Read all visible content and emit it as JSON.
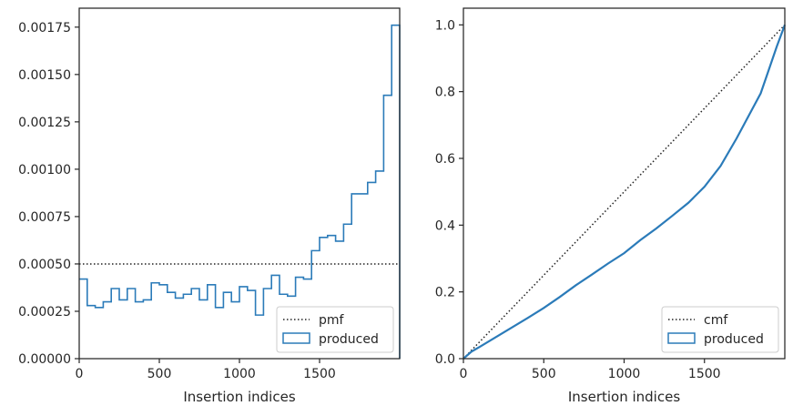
{
  "chart_data": [
    {
      "type": "step",
      "xlabel": "Insertion indices",
      "ylabel": "",
      "xlim": [
        0,
        2000
      ],
      "ylim": [
        0,
        0.00185
      ],
      "xticks": [
        0,
        500,
        1000,
        1500
      ],
      "yticks": [
        0.0,
        0.00025,
        0.0005,
        0.00075,
        0.001,
        0.00125,
        0.0015,
        0.00175
      ],
      "ytick_labels": [
        "0.00000",
        "0.00025",
        "0.00050",
        "0.00075",
        "0.00100",
        "0.00125",
        "0.00150",
        "0.00175"
      ],
      "legend_position": "lower right",
      "series": [
        {
          "name": "pmf",
          "style": "dotted",
          "color": "#000000",
          "x": [
            0,
            2000
          ],
          "y": [
            0.0005,
            0.0005
          ]
        },
        {
          "name": "produced",
          "style": "step-histogram",
          "color": "#2b7bb9",
          "bin_edges": [
            0,
            50,
            100,
            150,
            200,
            250,
            300,
            350,
            400,
            450,
            500,
            550,
            600,
            650,
            700,
            750,
            800,
            850,
            900,
            950,
            1000,
            1050,
            1100,
            1150,
            1200,
            1250,
            1300,
            1350,
            1400,
            1450,
            1500,
            1550,
            1600,
            1650,
            1700,
            1750,
            1800,
            1850,
            1900,
            1950,
            2000
          ],
          "values": [
            0.00042,
            0.00028,
            0.00027,
            0.0003,
            0.00037,
            0.00031,
            0.00037,
            0.0003,
            0.00031,
            0.0004,
            0.00039,
            0.00035,
            0.00032,
            0.00034,
            0.00037,
            0.00031,
            0.00039,
            0.00027,
            0.00035,
            0.0003,
            0.00038,
            0.00036,
            0.00023,
            0.00037,
            0.00044,
            0.00034,
            0.00033,
            0.00043,
            0.00042,
            0.00057,
            0.00064,
            0.00065,
            0.00062,
            0.00071,
            0.00087,
            0.00087,
            0.00093,
            0.00099,
            0.00139,
            0.00176
          ]
        }
      ]
    },
    {
      "type": "line",
      "xlabel": "Insertion indices",
      "ylabel": "",
      "xlim": [
        0,
        2000
      ],
      "ylim": [
        0,
        1.05
      ],
      "xticks": [
        0,
        500,
        1000,
        1500
      ],
      "yticks": [
        0.0,
        0.2,
        0.4,
        0.6,
        0.8,
        1.0
      ],
      "ytick_labels": [
        "0.0",
        "0.2",
        "0.4",
        "0.6",
        "0.8",
        "1.0"
      ],
      "legend_position": "lower right",
      "series": [
        {
          "name": "cmf",
          "style": "dotted",
          "color": "#000000",
          "x": [
            0,
            2000
          ],
          "y": [
            0,
            1
          ]
        },
        {
          "name": "produced",
          "style": "step-line",
          "color": "#2b7bb9",
          "x": [
            0,
            50,
            100,
            200,
            300,
            400,
            500,
            600,
            700,
            800,
            900,
            1000,
            1100,
            1200,
            1300,
            1400,
            1500,
            1600,
            1700,
            1750,
            1800,
            1850,
            1900,
            1950,
            2000
          ],
          "y": [
            0,
            0.021,
            0.035,
            0.064,
            0.093,
            0.122,
            0.152,
            0.185,
            0.22,
            0.252,
            0.285,
            0.316,
            0.355,
            0.39,
            0.428,
            0.467,
            0.515,
            0.577,
            0.66,
            0.705,
            0.75,
            0.795,
            0.865,
            0.935,
            1.0
          ]
        }
      ]
    }
  ]
}
